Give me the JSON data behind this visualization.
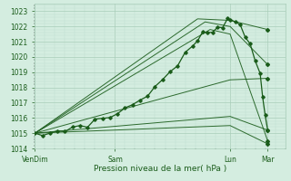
{
  "xlabel": "Pression niveau de la mer( hPa )",
  "ylim": [
    1014,
    1023.5
  ],
  "yticks": [
    1014,
    1015,
    1016,
    1017,
    1018,
    1019,
    1020,
    1021,
    1022,
    1023
  ],
  "xtick_labels": [
    "VenDim",
    "Sam",
    "Lun",
    "Mar"
  ],
  "xtick_positions": [
    0.0,
    0.32,
    0.78,
    0.93
  ],
  "bg_color": "#d4ede0",
  "grid_major_color": "#a8cdb8",
  "grid_minor_color": "#c0dece",
  "line_color": "#1a5c1a",
  "marker_color": "#1a5c1a",
  "fan_lines": [
    {
      "x": [
        0.0,
        0.65,
        0.78,
        0.93
      ],
      "y": [
        1015.0,
        1022.5,
        1022.4,
        1021.8
      ]
    },
    {
      "x": [
        0.0,
        0.68,
        0.78,
        0.93
      ],
      "y": [
        1015.0,
        1022.3,
        1022.0,
        1019.5
      ]
    },
    {
      "x": [
        0.0,
        0.7,
        0.78,
        0.93
      ],
      "y": [
        1015.0,
        1021.8,
        1021.5,
        1014.5
      ]
    },
    {
      "x": [
        0.0,
        0.78,
        0.93
      ],
      "y": [
        1015.0,
        1018.5,
        1018.6
      ]
    },
    {
      "x": [
        0.0,
        0.78,
        0.93
      ],
      "y": [
        1015.0,
        1016.1,
        1015.2
      ]
    },
    {
      "x": [
        0.0,
        0.78,
        0.93
      ],
      "y": [
        1015.0,
        1015.5,
        1014.3
      ]
    }
  ],
  "obs_x": [
    0.0,
    0.03,
    0.06,
    0.09,
    0.12,
    0.15,
    0.18,
    0.21,
    0.24,
    0.27,
    0.3,
    0.33,
    0.36,
    0.39,
    0.42,
    0.45,
    0.48,
    0.51,
    0.54,
    0.57,
    0.6,
    0.63,
    0.65,
    0.67,
    0.69,
    0.71,
    0.73,
    0.75,
    0.77,
    0.78,
    0.8,
    0.82,
    0.84,
    0.86,
    0.88,
    0.9,
    0.91,
    0.92,
    0.93
  ],
  "obs_y": [
    1014.8,
    1014.9,
    1015.0,
    1015.1,
    1015.2,
    1015.4,
    1015.5,
    1015.6,
    1015.8,
    1015.9,
    1016.1,
    1016.3,
    1016.6,
    1016.9,
    1017.2,
    1017.6,
    1018.0,
    1018.5,
    1019.0,
    1019.6,
    1020.1,
    1020.7,
    1021.1,
    1021.4,
    1021.6,
    1021.8,
    1022.0,
    1022.2,
    1022.4,
    1022.5,
    1022.4,
    1022.0,
    1021.5,
    1020.8,
    1020.0,
    1019.0,
    1017.5,
    1016.0,
    1015.0
  ]
}
